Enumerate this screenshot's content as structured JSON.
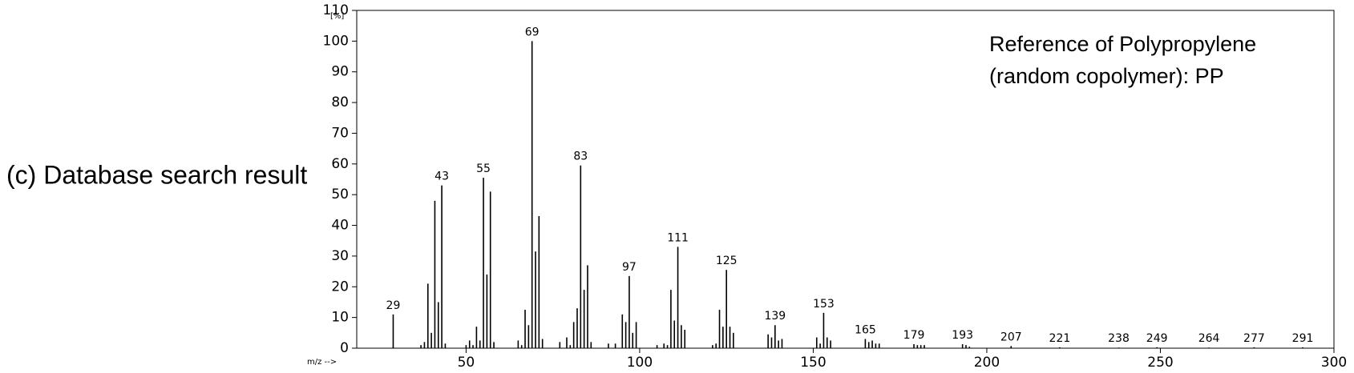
{
  "chart_data": {
    "type": "spectrum",
    "caption": "(c) Database search result",
    "annotation_lines": [
      "Reference of Polypropylene",
      "(random copolymer): PP"
    ],
    "ylabel": "[%]",
    "xlabel": "m/z -->",
    "color": "#000000",
    "x": [
      37,
      38,
      39,
      40,
      41,
      42,
      44,
      50,
      51,
      52,
      53,
      54,
      56,
      57,
      58,
      65,
      66,
      67,
      68,
      70,
      71,
      72,
      77,
      79,
      80,
      81,
      82,
      84,
      85,
      86,
      91,
      93,
      95,
      96,
      98,
      99,
      105,
      107,
      108,
      109,
      110,
      112,
      113,
      121,
      122,
      123,
      124,
      126,
      127,
      137,
      138,
      140,
      141,
      151,
      152,
      154,
      155,
      166,
      167,
      168,
      169,
      180,
      181,
      182,
      194,
      195
    ],
    "values": [
      1,
      2,
      21,
      5,
      48,
      15,
      1.5,
      1,
      2.5,
      1,
      7,
      2.5,
      24,
      51,
      2,
      2.5,
      1,
      12.5,
      7.5,
      31.5,
      43,
      3,
      2,
      3.5,
      1,
      8.5,
      13,
      19,
      27,
      2,
      1.5,
      1.5,
      11,
      8.5,
      5,
      8.5,
      1,
      1.5,
      1,
      19,
      9,
      7.5,
      6,
      1,
      1.5,
      12.5,
      7,
      7,
      5,
      4.5,
      3.5,
      2.5,
      3,
      3.5,
      1.5,
      3.5,
      2.5,
      2,
      2.5,
      1.5,
      1.5,
      1,
      1,
      1,
      1,
      0.5
    ],
    "labeled_peaks": {
      "x": [
        29,
        43,
        55,
        69,
        83,
        97,
        111,
        125,
        139,
        153,
        165,
        179,
        193,
        207,
        221,
        238,
        249,
        264,
        277,
        291
      ],
      "values": [
        11,
        53,
        55.5,
        100,
        59.5,
        23.5,
        33,
        25.5,
        7.5,
        11.5,
        3,
        1.3,
        1.3,
        0.7,
        0.3,
        0.2,
        0.3,
        0.2,
        0.3,
        0.3
      ]
    },
    "xlim": [
      18.5,
      300
    ],
    "ylim": [
      0,
      110
    ],
    "xticks": [
      50,
      100,
      150,
      200,
      250,
      300
    ],
    "yticks": [
      0,
      10,
      20,
      30,
      40,
      50,
      60,
      70,
      80,
      90,
      100,
      110
    ]
  }
}
